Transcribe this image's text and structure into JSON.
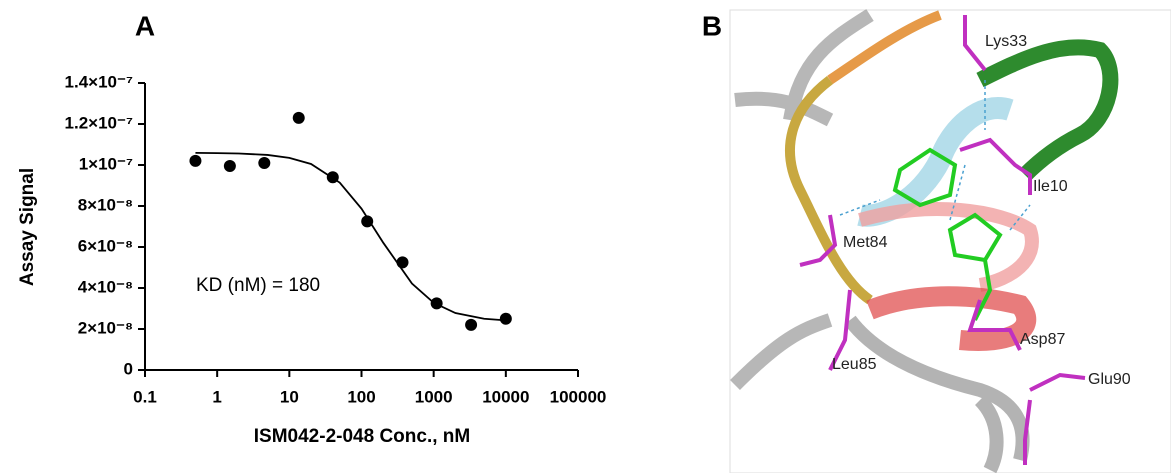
{
  "chart_data": {
    "type": "scatter",
    "panel_label": "A",
    "x_label": "ISM042-2-048 Conc., nM",
    "y_label": "Assay Signal",
    "annotation": "KD (nM) = 180",
    "log_x": true,
    "xlim": [
      0.1,
      100000
    ],
    "xticks": [
      0.1,
      1,
      10,
      100,
      1000,
      10000,
      100000
    ],
    "ylim": [
      0,
      1.4e-07
    ],
    "yticks": [
      0,
      {
        "value": 2e-08,
        "label": "2×10⁻⁸"
      },
      {
        "value": 4e-08,
        "label": "4×10⁻⁸"
      },
      {
        "value": 6e-08,
        "label": "6×10⁻⁸"
      },
      {
        "value": 8e-08,
        "label": "8×10⁻⁸"
      },
      {
        "value": 1e-07,
        "label": "1×10⁻⁷"
      },
      {
        "value": 1.2e-07,
        "label": "1.2×10⁻⁷"
      },
      {
        "value": 1.4e-07,
        "label": "1.4×10⁻⁷"
      }
    ],
    "series": [
      {
        "mode": "markers",
        "color": "#000000",
        "x": [
          0.5,
          1.5,
          4.5,
          13.5,
          40,
          120,
          370,
          1100,
          3300,
          10000
        ],
        "values": [
          1.02e-07,
          9.95e-08,
          1.01e-07,
          1.23e-07,
          9.4e-08,
          7.25e-08,
          5.25e-08,
          3.25e-08,
          2.2e-08,
          2.5e-08
        ]
      },
      {
        "mode": "line",
        "color": "#000000",
        "x": [
          0.5,
          1,
          2,
          5,
          10,
          20,
          50,
          100,
          200,
          500,
          1000,
          2000,
          5000,
          10000
        ],
        "values": [
          1.059e-07,
          1.058e-07,
          1.056e-07,
          1.049e-07,
          1.035e-07,
          1.005e-07,
          9.14e-08,
          7.87e-08,
          6.21e-08,
          4.22e-08,
          3.28e-08,
          2.78e-08,
          2.5e-08,
          2.42e-08
        ]
      }
    ]
  },
  "structure": {
    "panel_label": "B",
    "residues": [
      "Lys33",
      "Ile10",
      "Met84",
      "Leu85",
      "Asp87",
      "Glu90"
    ]
  }
}
